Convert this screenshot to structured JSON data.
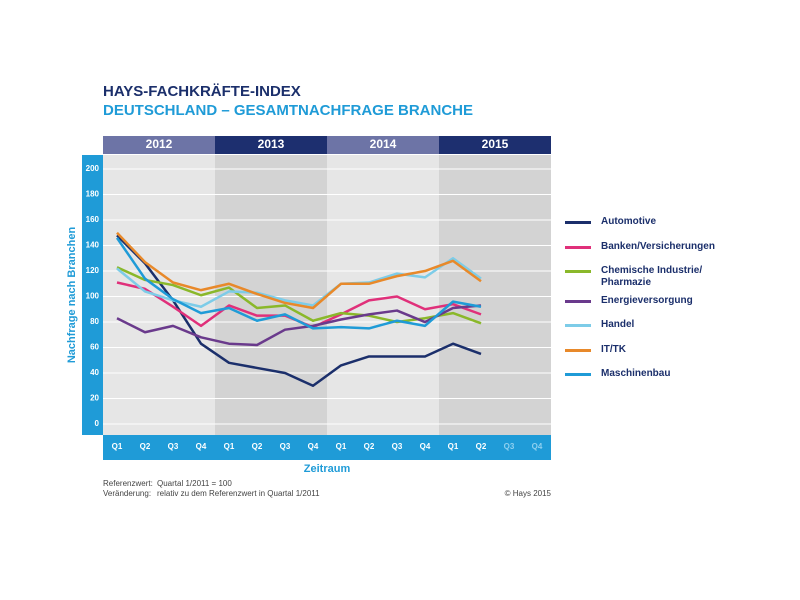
{
  "chart_data": {
    "type": "line",
    "title": "HAYS-FACHKRÄFTE-INDEX",
    "subtitle": "DEUTSCHLAND – GESAMTNACHFRAGE BRANCHE",
    "years": [
      "2012",
      "2013",
      "2014",
      "2015"
    ],
    "categories": [
      "Q1",
      "Q2",
      "Q3",
      "Q4",
      "Q1",
      "Q2",
      "Q3",
      "Q4",
      "Q1",
      "Q2",
      "Q3",
      "Q4",
      "Q1",
      "Q2",
      "Q3",
      "Q4"
    ],
    "y_label": "Nachfrage nach Branchen",
    "x_label": "Zeitraum",
    "ylim": [
      -8.6,
      211
    ],
    "yticks": [
      0,
      20,
      40,
      60,
      80,
      100,
      120,
      140,
      160,
      180,
      200
    ],
    "grid": true,
    "series": [
      {
        "name": "Automotive",
        "color": "#1b2f6b",
        "values": [
          148,
          126,
          97,
          63,
          48,
          44,
          40,
          30,
          46,
          53,
          53,
          53,
          63,
          55,
          null,
          null
        ]
      },
      {
        "name": "Banken/Versicherungen",
        "color": "#e0307a",
        "values": [
          111,
          106,
          92,
          77,
          93,
          85,
          85,
          76,
          86,
          97,
          100,
          90,
          94,
          86,
          null,
          null
        ]
      },
      {
        "name": "Chemische Industrie/ Pharmazie",
        "color": "#8ab82a",
        "values": [
          123,
          113,
          109,
          101,
          107,
          91,
          93,
          81,
          87,
          85,
          80,
          83,
          87,
          79,
          null,
          null
        ]
      },
      {
        "name": "Energieversorgung",
        "color": "#6a3a8c",
        "values": [
          83,
          72,
          77,
          68,
          63,
          62,
          74,
          77,
          82,
          86,
          89,
          80,
          91,
          93,
          null,
          null
        ]
      },
      {
        "name": "Handel",
        "color": "#7dcce8",
        "values": [
          122,
          104,
          97,
          92,
          104,
          103,
          97,
          93,
          110,
          111,
          118,
          115,
          130,
          114,
          null,
          null
        ]
      },
      {
        "name": "IT/TK",
        "color": "#e8892a",
        "values": [
          150,
          127,
          111,
          105,
          110,
          102,
          95,
          91,
          110,
          110,
          116,
          120,
          128,
          112,
          null,
          null
        ]
      },
      {
        "name": "Maschinenbau",
        "color": "#1f9bd7",
        "values": [
          146,
          114,
          98,
          87,
          91,
          81,
          86,
          75,
          76,
          75,
          81,
          77,
          96,
          92,
          null,
          null
        ]
      }
    ],
    "notes": [
      {
        "label": "Referenzwert:",
        "text": "Quartal 1/2011 = 100"
      },
      {
        "label": "Veränderung:",
        "text": "relativ zu dem Referenzwert in Quartal 1/2011"
      }
    ],
    "copyright": "© Hays 2015"
  }
}
